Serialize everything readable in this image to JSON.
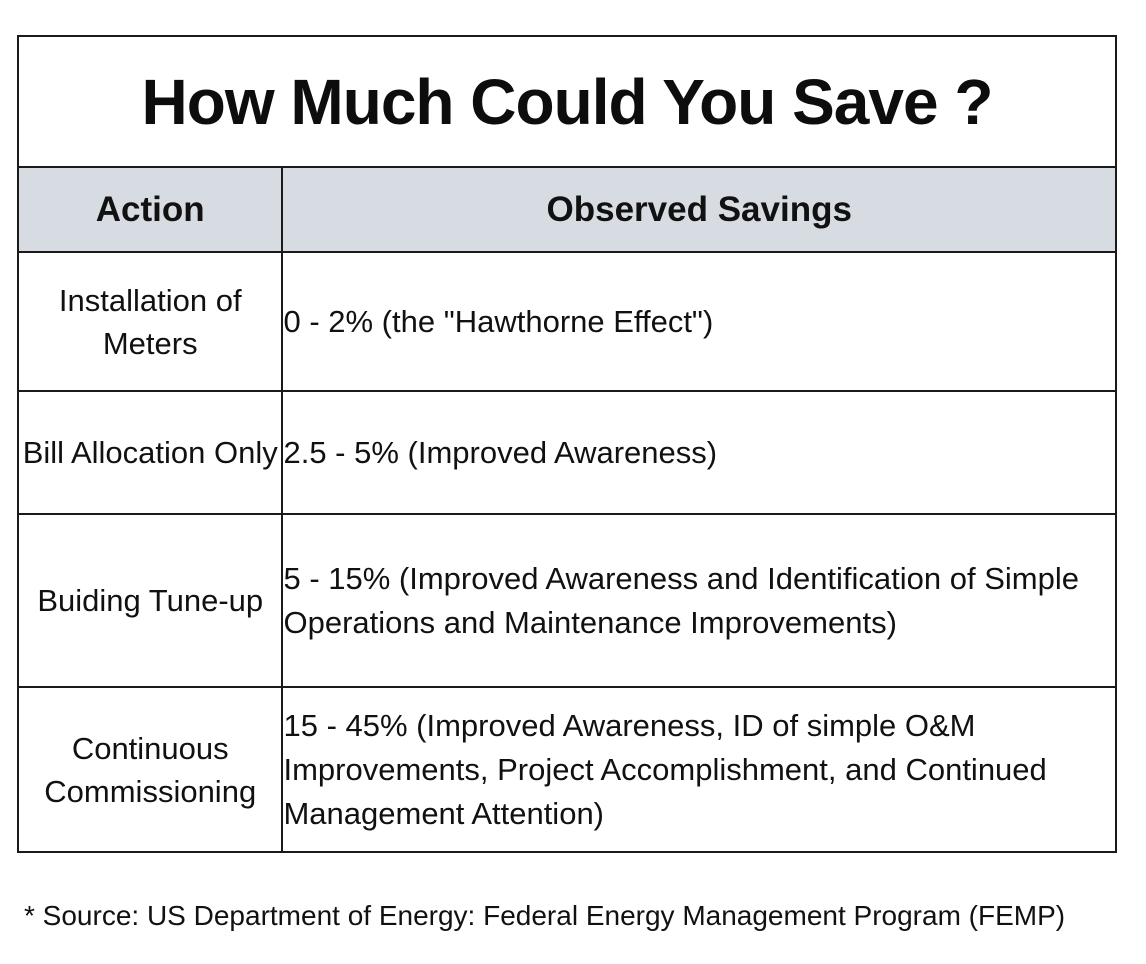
{
  "title": "How Much Could You Save ?",
  "columns": {
    "action": "Action",
    "savings": "Observed Savings"
  },
  "rows": [
    {
      "action": "Installation of Meters",
      "savings": "0 - 2% (the \"Hawthorne Effect\")"
    },
    {
      "action": "Bill Allocation Only",
      "savings": "2.5 - 5% (Improved Awareness)"
    },
    {
      "action": "Buiding Tune-up",
      "savings": "5 - 15% (Improved Awareness and Identification of Simple Operations and Maintenance Improvements)"
    },
    {
      "action": "Continuous Commissioning",
      "savings": "15 - 45% (Improved Awareness, ID of simple O&M Improvements, Project Accomplishment, and Continued Management Attention)"
    }
  ],
  "footnote": "* Source: US Department of Energy: Federal Energy Management Program (FEMP)"
}
